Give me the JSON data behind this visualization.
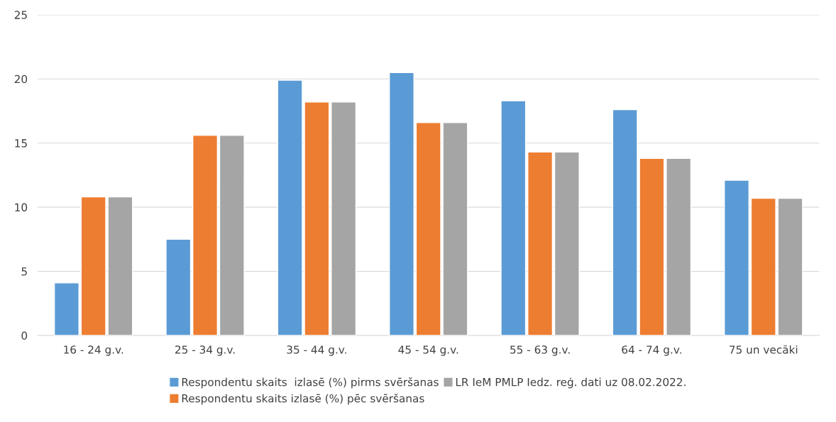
{
  "chart_data": {
    "type": "bar",
    "categories": [
      "16 - 24 g.v.",
      "25 - 34 g.v.",
      "35 - 44 g.v.",
      "45 - 54 g.v.",
      "55 - 63 g.v.",
      "64 - 74 g.v.",
      "75 un vecāki"
    ],
    "series": [
      {
        "name": "Respondentu skaits  izlasē (%) pirms svēršanas",
        "color": "#5b9bd5",
        "values": [
          4.1,
          7.5,
          19.9,
          20.5,
          18.3,
          17.6,
          12.1
        ]
      },
      {
        "name": "Respondentu skaits izlasē (%) pēc svēršanas",
        "color": "#ed7d31",
        "values": [
          10.8,
          15.6,
          18.2,
          16.6,
          14.3,
          13.8,
          10.7
        ]
      },
      {
        "name": "LR IeM PMLP Iedz. reģ. dati uz 08.02.2022.",
        "color": "#a5a5a5",
        "values": [
          10.8,
          15.6,
          18.2,
          16.6,
          14.3,
          13.8,
          10.7
        ]
      }
    ],
    "ylim": [
      0,
      25
    ],
    "yticks": [
      0,
      5,
      10,
      15,
      20,
      25
    ],
    "grid": "y",
    "legend": "bottom"
  }
}
